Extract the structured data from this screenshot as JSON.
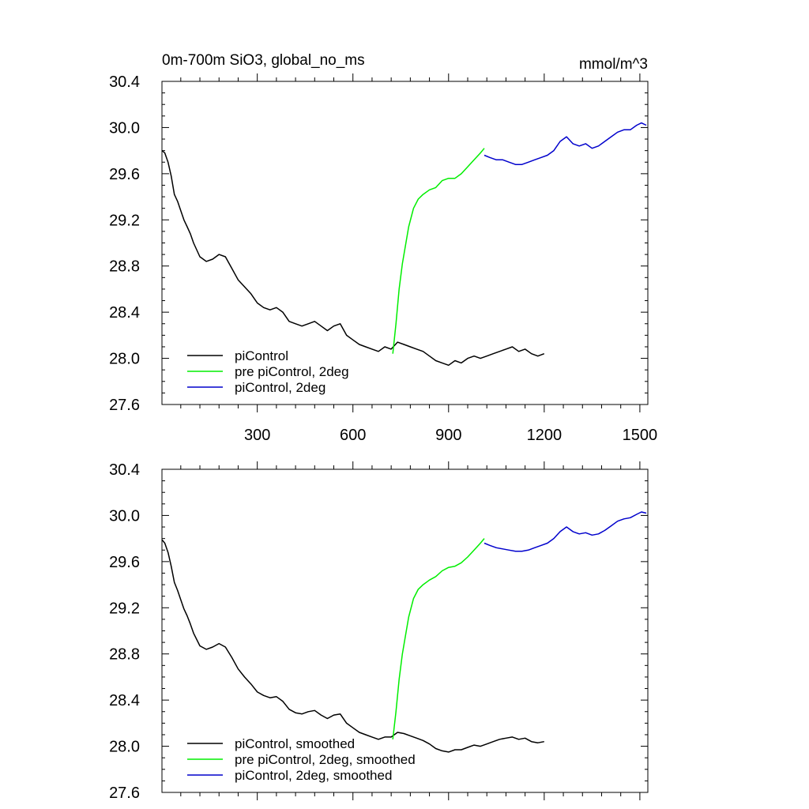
{
  "figure": {
    "title": "0m-700m SiO3, global_no_ms",
    "units": "mmol/m^3"
  },
  "chart_data": [
    {
      "type": "line",
      "title": "0m-700m SiO3, global_no_ms",
      "units_label": "mmol/m^3",
      "xlabel": "",
      "ylabel": "",
      "xlim": [
        1,
        1525
      ],
      "ylim": [
        27.6,
        30.4
      ],
      "x_ticks": [
        300,
        600,
        900,
        1200,
        1500
      ],
      "x_tick_labels": [
        "300",
        "600",
        "900",
        "1200",
        "1500"
      ],
      "y_ticks": [
        27.6,
        28.0,
        28.4,
        28.8,
        29.2,
        29.6,
        30.0,
        30.4
      ],
      "y_tick_labels": [
        "27.6",
        "28.0",
        "28.4",
        "28.8",
        "29.2",
        "29.6",
        "30.0",
        "30.4"
      ],
      "show_x_tick_labels": true,
      "legend_position": "bottom-left",
      "series": [
        {
          "name": "piControl",
          "color": "#000000",
          "x": [
            1,
            10,
            20,
            30,
            40,
            50,
            60,
            70,
            80,
            90,
            100,
            120,
            140,
            160,
            180,
            200,
            220,
            240,
            260,
            280,
            300,
            320,
            340,
            360,
            380,
            400,
            420,
            440,
            460,
            480,
            500,
            520,
            540,
            560,
            580,
            600,
            620,
            640,
            660,
            680,
            700,
            720,
            740,
            760,
            780,
            800,
            820,
            840,
            860,
            880,
            900,
            920,
            940,
            960,
            980,
            1000,
            1020,
            1040,
            1060,
            1080,
            1100,
            1120,
            1140,
            1160,
            1180,
            1200
          ],
          "values": [
            29.8,
            29.78,
            29.7,
            29.58,
            29.42,
            29.36,
            29.28,
            29.2,
            29.14,
            29.08,
            29.0,
            28.88,
            28.84,
            28.86,
            28.9,
            28.88,
            28.78,
            28.68,
            28.62,
            28.56,
            28.48,
            28.44,
            28.42,
            28.44,
            28.4,
            28.32,
            28.3,
            28.28,
            28.3,
            28.32,
            28.28,
            28.24,
            28.28,
            28.3,
            28.2,
            28.16,
            28.12,
            28.1,
            28.08,
            28.06,
            28.1,
            28.08,
            28.14,
            28.12,
            28.1,
            28.08,
            28.06,
            28.02,
            27.98,
            27.96,
            27.94,
            27.98,
            27.96,
            28.0,
            28.02,
            28.0,
            28.02,
            28.04,
            28.06,
            28.08,
            28.1,
            28.06,
            28.08,
            28.04,
            28.02,
            28.04
          ]
        },
        {
          "name": "pre piControl, 2deg",
          "color": "#00ee00",
          "x": [
            725,
            735,
            745,
            755,
            765,
            775,
            790,
            805,
            820,
            840,
            860,
            880,
            900,
            920,
            940,
            960,
            980,
            1000,
            1012
          ],
          "values": [
            28.04,
            28.3,
            28.6,
            28.82,
            28.98,
            29.14,
            29.3,
            29.38,
            29.42,
            29.46,
            29.48,
            29.54,
            29.56,
            29.56,
            29.6,
            29.66,
            29.72,
            29.78,
            29.82
          ]
        },
        {
          "name": "piControl, 2deg",
          "color": "#0000cc",
          "x": [
            1012,
            1030,
            1050,
            1070,
            1090,
            1110,
            1130,
            1150,
            1170,
            1190,
            1210,
            1230,
            1250,
            1270,
            1290,
            1310,
            1330,
            1350,
            1370,
            1390,
            1410,
            1430,
            1450,
            1470,
            1490,
            1505,
            1520
          ],
          "values": [
            29.76,
            29.74,
            29.72,
            29.72,
            29.7,
            29.68,
            29.68,
            29.7,
            29.72,
            29.74,
            29.76,
            29.8,
            29.88,
            29.92,
            29.86,
            29.84,
            29.86,
            29.82,
            29.84,
            29.88,
            29.92,
            29.96,
            29.98,
            29.98,
            30.02,
            30.04,
            30.02
          ]
        }
      ]
    },
    {
      "type": "line",
      "title": "",
      "xlabel": "",
      "ylabel": "",
      "xlim": [
        1,
        1525
      ],
      "ylim": [
        27.6,
        30.4
      ],
      "x_ticks": [
        300,
        600,
        900,
        1200,
        1500
      ],
      "x_tick_labels": [],
      "y_ticks": [
        27.6,
        28.0,
        28.4,
        28.8,
        29.2,
        29.6,
        30.0,
        30.4
      ],
      "y_tick_labels": [
        "27.6",
        "28.0",
        "28.4",
        "28.8",
        "29.2",
        "29.6",
        "30.0",
        "30.4"
      ],
      "show_x_tick_labels": false,
      "legend_position": "bottom-left",
      "series": [
        {
          "name": "piControl, smoothed",
          "color": "#000000",
          "x": [
            1,
            10,
            20,
            30,
            40,
            50,
            60,
            70,
            80,
            90,
            100,
            120,
            140,
            160,
            180,
            200,
            220,
            240,
            260,
            280,
            300,
            320,
            340,
            360,
            380,
            400,
            420,
            440,
            460,
            480,
            500,
            520,
            540,
            560,
            580,
            600,
            620,
            640,
            660,
            680,
            700,
            720,
            740,
            760,
            780,
            800,
            820,
            840,
            860,
            880,
            900,
            920,
            940,
            960,
            980,
            1000,
            1020,
            1040,
            1060,
            1080,
            1100,
            1120,
            1140,
            1160,
            1180,
            1200
          ],
          "values": [
            29.79,
            29.76,
            29.68,
            29.56,
            29.42,
            29.35,
            29.27,
            29.19,
            29.13,
            29.06,
            28.98,
            28.87,
            28.84,
            28.86,
            28.89,
            28.86,
            28.77,
            28.67,
            28.6,
            28.54,
            28.47,
            28.44,
            28.42,
            28.43,
            28.39,
            28.32,
            28.29,
            28.28,
            28.3,
            28.31,
            28.27,
            28.24,
            28.27,
            28.28,
            28.2,
            28.16,
            28.12,
            28.1,
            28.08,
            28.06,
            28.08,
            28.08,
            28.12,
            28.11,
            28.09,
            28.07,
            28.05,
            28.02,
            27.98,
            27.96,
            27.95,
            27.97,
            27.97,
            27.99,
            28.01,
            28.0,
            28.02,
            28.04,
            28.06,
            28.07,
            28.08,
            28.06,
            28.07,
            28.04,
            28.03,
            28.04
          ]
        },
        {
          "name": "pre piControl, 2deg, smoothed",
          "color": "#00ee00",
          "x": [
            725,
            735,
            745,
            755,
            765,
            775,
            790,
            805,
            820,
            840,
            860,
            880,
            900,
            920,
            940,
            960,
            980,
            1000,
            1012
          ],
          "values": [
            28.06,
            28.3,
            28.58,
            28.8,
            28.96,
            29.12,
            29.28,
            29.36,
            29.4,
            29.44,
            29.47,
            29.52,
            29.55,
            29.56,
            29.59,
            29.64,
            29.7,
            29.76,
            29.8
          ]
        },
        {
          "name": "piControl, 2deg, smoothed",
          "color": "#0000cc",
          "x": [
            1012,
            1030,
            1050,
            1070,
            1090,
            1110,
            1130,
            1150,
            1170,
            1190,
            1210,
            1230,
            1250,
            1270,
            1290,
            1310,
            1330,
            1350,
            1370,
            1390,
            1410,
            1430,
            1450,
            1470,
            1490,
            1505,
            1520
          ],
          "values": [
            29.76,
            29.74,
            29.72,
            29.71,
            29.7,
            29.69,
            29.69,
            29.7,
            29.72,
            29.74,
            29.76,
            29.8,
            29.86,
            29.9,
            29.86,
            29.84,
            29.85,
            29.83,
            29.84,
            29.87,
            29.91,
            29.95,
            29.97,
            29.98,
            30.01,
            30.03,
            30.02
          ]
        }
      ]
    }
  ]
}
